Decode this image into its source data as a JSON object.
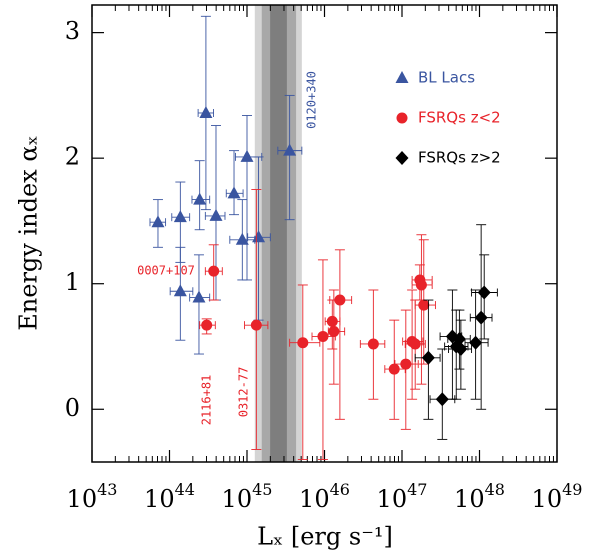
{
  "chart_data": {
    "type": "scatter",
    "xlabel": "Lₓ [erg s⁻¹]",
    "ylabel": "Energy index αₓ",
    "xscale": "log",
    "xlim": [
      1e+43,
      1e+49
    ],
    "ylim": [
      -0.42,
      3.22
    ],
    "xticks": [
      {
        "value": 1e+43,
        "label": "10",
        "exponent": "43"
      },
      {
        "value": 1e+44,
        "label": "10",
        "exponent": "44"
      },
      {
        "value": 1e+45,
        "label": "10",
        "exponent": "45"
      },
      {
        "value": 1e+46,
        "label": "10",
        "exponent": "46"
      },
      {
        "value": 1e+47,
        "label": "10",
        "exponent": "47"
      },
      {
        "value": 1e+48,
        "label": "10",
        "exponent": "48"
      },
      {
        "value": 1e+49,
        "label": "10",
        "exponent": "49"
      }
    ],
    "yticks": [
      0,
      1,
      2,
      3
    ],
    "bands": [
      {
        "xmin": 1.26e+45,
        "xmax": 5.1e+45,
        "color": "#d4d4d4"
      },
      {
        "xmin": 1.55e+45,
        "xmax": 4.3e+45,
        "color": "#a8a8a8"
      },
      {
        "xmin": 1.99e+45,
        "xmax": 3.27e+45,
        "color": "#7e7e7e"
      }
    ],
    "legend": "upper right",
    "series": [
      {
        "name": "BL Lacs",
        "color": "#3a55a0",
        "marker": "triangle",
        "x": [
          7.1e+43,
          1.38e+44,
          1.38e+44,
          2.4e+44,
          2.45e+44,
          2.95e+44,
          3.98e+44,
          6.8e+44,
          8.7e+44,
          1e+45,
          1.41e+45,
          3.55e+45
        ],
        "values": [
          1.49,
          1.53,
          0.94,
          0.89,
          1.67,
          2.36,
          1.54,
          1.72,
          1.35,
          2.01,
          1.37,
          2.06
        ],
        "y_low": [
          1.29,
          1.17,
          0.55,
          0.44,
          1.43,
          1.59,
          0.87,
          1.55,
          1.03,
          1.03,
          0.71,
          1.51
        ],
        "y_high": [
          1.67,
          1.81,
          1.29,
          1.23,
          1.98,
          3.13,
          2.26,
          2.06,
          1.67,
          2.34,
          2.01,
          2.5
        ],
        "x_low": [
          5.6e+43,
          1.07e+44,
          1.02e+44,
          1.82e+44,
          1.95e+44,
          2.34e+44,
          2.9e+44,
          5.4e+44,
          6e+44,
          7.1e+44,
          1.02e+45,
          2.5e+45
        ],
        "x_high": [
          8.9e+43,
          1.82e+44,
          2e+44,
          3.3e+44,
          3.3e+44,
          3.7e+44,
          5.2e+44,
          8.9e+44,
          1.26e+45,
          1.55e+45,
          2e+45,
          5.1e+45
        ]
      },
      {
        "name": "FSRQs z<2",
        "color": "#e8232a",
        "marker": "circle",
        "x": [
          3.72e+44,
          3.02e+44,
          1.32e+45,
          5.25e+45,
          9.55e+45,
          1.26e+46,
          1.32e+46,
          1.58e+46,
          4.27e+46,
          7.94e+46,
          1.12e+47,
          1.35e+47,
          1.48e+47,
          1.7e+47,
          1.78e+47,
          1.91e+47
        ],
        "values": [
          1.1,
          0.67,
          0.67,
          0.53,
          0.58,
          0.7,
          0.62,
          0.87,
          0.52,
          0.32,
          0.36,
          0.54,
          0.52,
          1.03,
          0.99,
          0.83
        ],
        "y_low": [
          0.87,
          0.6,
          -0.32,
          -0.4,
          -0.4,
          0.48,
          0.2,
          -0.08,
          0.08,
          -0.08,
          -0.16,
          0.08,
          0.16,
          0.87,
          0.2,
          0.36
        ],
        "y_high": [
          1.31,
          0.72,
          1.75,
          0.99,
          1.19,
          0.87,
          0.95,
          1.27,
          0.95,
          0.71,
          0.79,
          0.95,
          0.87,
          1.15,
          1.39,
          1.35
        ],
        "x_low": [
          2.9e+44,
          2.45e+44,
          9.3e+44,
          3.55e+45,
          6.9e+45,
          1.02e+46,
          1.12e+46,
          1.17e+46,
          2.9e+46,
          6e+46,
          8.1e+46,
          1.02e+47,
          1.1e+47,
          1.35e+47,
          1.35e+47,
          1.48e+47
        ],
        "x_high": [
          4.8e+44,
          3.9e+44,
          1.86e+45,
          8.7e+45,
          1.38e+46,
          1.58e+46,
          1.82e+46,
          2.24e+46,
          6e+46,
          1.1e+47,
          1.62e+47,
          1.86e+47,
          2e+47,
          2.45e+47,
          2.45e+47,
          2.7e+47
        ]
      },
      {
        "name": "FSRQs z>2",
        "color": "#000000",
        "marker": "diamond",
        "x": [
          2.19e+47,
          3.31e+47,
          4.47e+47,
          5.01e+47,
          5.5e+47,
          5.75e+47,
          8.91e+47,
          1.05e+48,
          1.15e+48
        ],
        "values": [
          0.41,
          0.08,
          0.58,
          0.5,
          0.56,
          0.48,
          0.53,
          0.73,
          0.93
        ],
        "y_low": [
          -0.08,
          -0.24,
          0.08,
          0.08,
          0.32,
          0.16,
          0.08,
          0.0,
          0.56
        ],
        "y_high": [
          0.87,
          0.48,
          0.95,
          0.79,
          0.79,
          0.71,
          0.95,
          1.47,
          1.23
        ],
        "x_low": [
          1.48e+47,
          2.3e+47,
          3.1e+47,
          3.55e+47,
          3.9e+47,
          3.98e+47,
          6.5e+47,
          7.6e+47,
          7.9e+47
        ],
        "x_high": [
          3.1e+47,
          4.8e+47,
          5.9e+47,
          7.1e+47,
          7.6e+47,
          7.9e+47,
          1.29e+48,
          1.45e+48,
          1.7e+48
        ]
      }
    ],
    "annotations": [
      {
        "text": "0120+340",
        "color": "#3a55a0"
      },
      {
        "text": "0007+107",
        "color": "#e8232a"
      },
      {
        "text": "2116+81",
        "color": "#e8232a"
      },
      {
        "text": "0312-77",
        "color": "#e8232a"
      }
    ]
  }
}
